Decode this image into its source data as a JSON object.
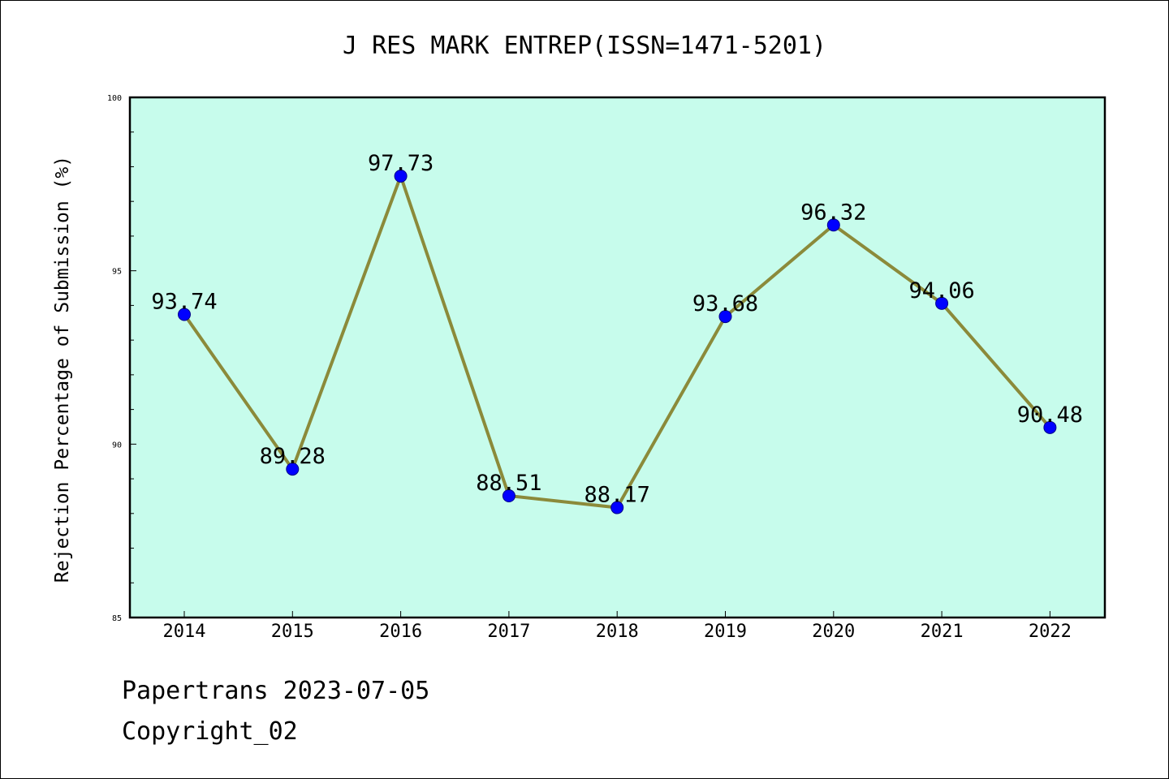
{
  "chart_data": {
    "type": "line",
    "title": "J RES MARK ENTREP(ISSN=1471-5201)",
    "xlabel": "",
    "ylabel": "Rejection Percentage of Submission (%)",
    "categories": [
      "2014",
      "2015",
      "2016",
      "2017",
      "2018",
      "2019",
      "2020",
      "2021",
      "2022"
    ],
    "values": [
      93.74,
      89.28,
      97.73,
      88.51,
      88.17,
      93.68,
      96.32,
      94.06,
      90.48
    ],
    "value_labels": [
      "93.74",
      "89.28",
      "97.73",
      "88.51",
      "88.17",
      "93.68",
      "96.32",
      "94.06",
      "90.48"
    ],
    "ylim": [
      85,
      100
    ],
    "yticks": [
      "85",
      "90",
      "95",
      "100"
    ],
    "grid": false,
    "colors": {
      "plot_background": "#c7fcec",
      "line": "#8b8a3a",
      "marker": "#0000ff"
    }
  },
  "footer": {
    "line1": "Papertrans 2023-07-05",
    "line2": "Copyright_02"
  }
}
